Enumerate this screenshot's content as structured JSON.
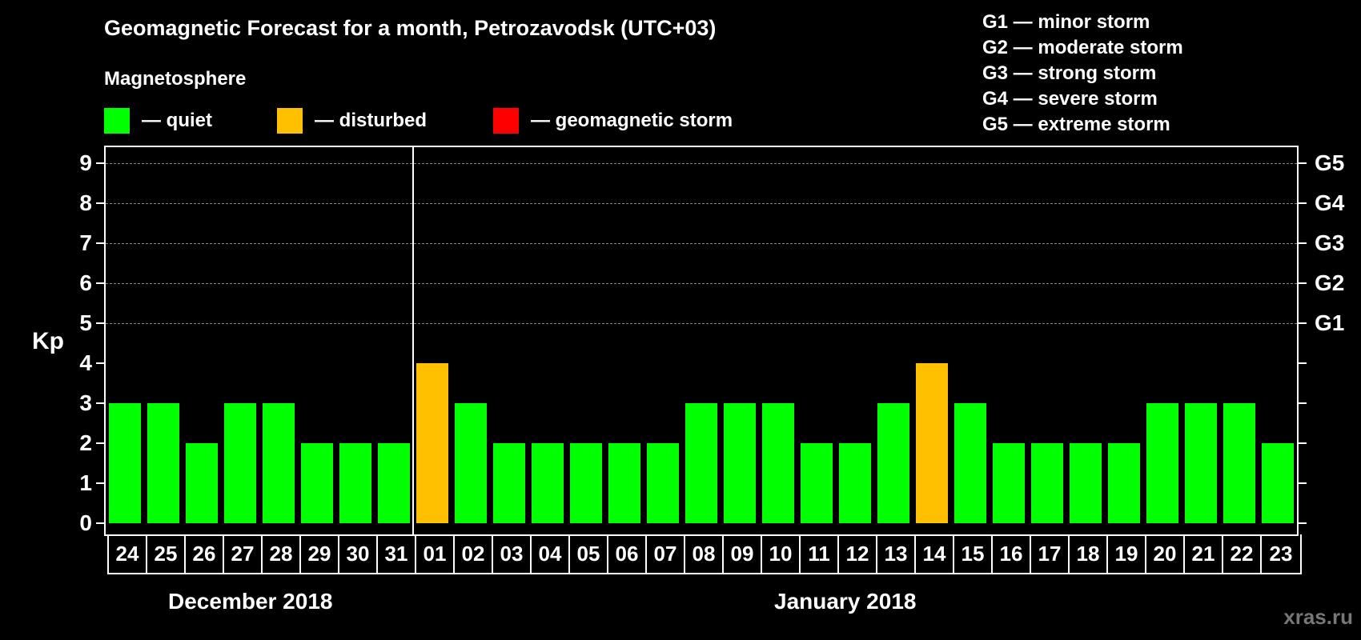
{
  "title": "Geomagnetic Forecast for a month, Petrozavodsk (UTC+03)",
  "subtitle": "Magnetosphere",
  "legend": [
    {
      "label": "— quiet",
      "color": "#00ff00"
    },
    {
      "label": "— disturbed",
      "color": "#ffc000"
    },
    {
      "label": "— geomagnetic storm",
      "color": "#ff0000"
    }
  ],
  "g_legend": [
    "G1 — minor storm",
    "G2 — moderate storm",
    "G3 — strong storm",
    "G4 — severe storm",
    "G5 — extreme storm"
  ],
  "y_axis_label": "Kp",
  "months": [
    "December 2018",
    "January 2018"
  ],
  "watermark": "xras.ru",
  "chart_data": {
    "type": "bar",
    "title": "Geomagnetic Forecast for a month, Petrozavodsk (UTC+03)",
    "xlabel": "",
    "ylabel": "Kp",
    "ylim": [
      0,
      9
    ],
    "yticks": [
      0,
      1,
      2,
      3,
      4,
      5,
      6,
      7,
      8,
      9
    ],
    "secondary_yticks": {
      "5": "G1",
      "6": "G2",
      "7": "G3",
      "8": "G4",
      "9": "G5"
    },
    "grid": "dashed horizontal lines at 5-9",
    "categories": [
      "24",
      "25",
      "26",
      "27",
      "28",
      "29",
      "30",
      "31",
      "01",
      "02",
      "03",
      "04",
      "05",
      "06",
      "07",
      "08",
      "09",
      "10",
      "11",
      "12",
      "13",
      "14",
      "15",
      "16",
      "17",
      "18",
      "19",
      "20",
      "21",
      "22",
      "23"
    ],
    "month_groups": [
      {
        "label": "December 2018",
        "days": [
          "24",
          "25",
          "26",
          "27",
          "28",
          "29",
          "30",
          "31"
        ]
      },
      {
        "label": "January 2018",
        "days": [
          "01",
          "02",
          "03",
          "04",
          "05",
          "06",
          "07",
          "08",
          "09",
          "10",
          "11",
          "12",
          "13",
          "14",
          "15",
          "16",
          "17",
          "18",
          "19",
          "20",
          "21",
          "22",
          "23"
        ]
      }
    ],
    "values": [
      3,
      3,
      2,
      3,
      3,
      2,
      2,
      2,
      4,
      3,
      2,
      2,
      2,
      2,
      2,
      3,
      3,
      3,
      2,
      2,
      3,
      4,
      3,
      2,
      2,
      2,
      2,
      3,
      3,
      3,
      2
    ],
    "status": [
      "quiet",
      "quiet",
      "quiet",
      "quiet",
      "quiet",
      "quiet",
      "quiet",
      "quiet",
      "disturbed",
      "quiet",
      "quiet",
      "quiet",
      "quiet",
      "quiet",
      "quiet",
      "quiet",
      "quiet",
      "quiet",
      "quiet",
      "quiet",
      "quiet",
      "disturbed",
      "quiet",
      "quiet",
      "quiet",
      "quiet",
      "quiet",
      "quiet",
      "quiet",
      "quiet",
      "quiet"
    ],
    "colors": {
      "quiet": "#00ff00",
      "disturbed": "#ffc000",
      "storm": "#ff0000"
    },
    "legend": [
      "quiet",
      "disturbed",
      "geomagnetic storm"
    ]
  }
}
